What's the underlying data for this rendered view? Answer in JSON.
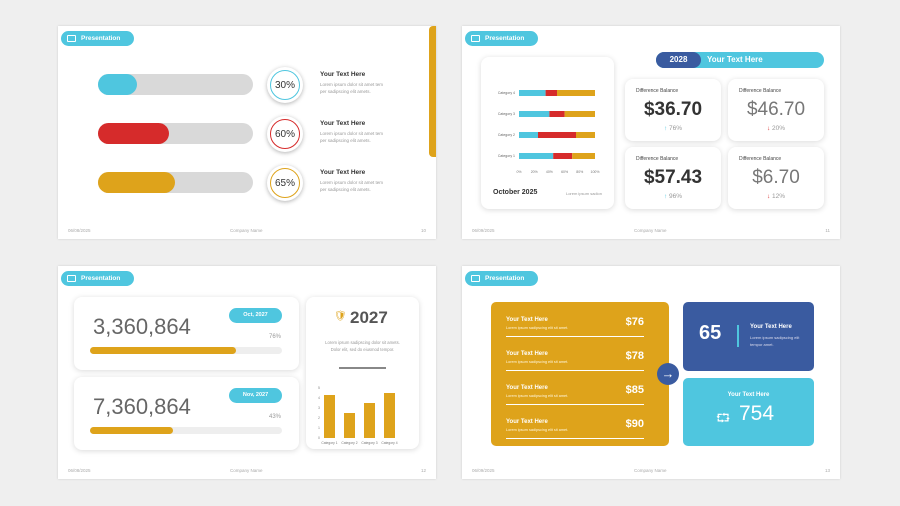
{
  "pill_label": "Presentation",
  "company": "Company Name",
  "colors": {
    "cyan": "#4fc6df",
    "red": "#d62b2b",
    "gold": "#dea31b",
    "navy": "#3a5ba0"
  },
  "slide1": {
    "date": "06/08/2025",
    "page": "10",
    "rows": [
      {
        "percent": "30%",
        "value": 30,
        "color": "#4fc6df",
        "title": "Your Text Here",
        "body": "Lorem ipsum dolor sit amet tem per sadipscing elit amets."
      },
      {
        "percent": "60%",
        "value": 60,
        "color": "#d62b2b",
        "title": "Your Text Here",
        "body": "Lorem ipsum dolor sit amet tem per sadipscing elit amets."
      },
      {
        "percent": "65%",
        "value": 65,
        "color": "#dea31b",
        "title": "Your Text Here",
        "body": "Lorem ipsum dolor sit amet tem per sadipscing elit amets."
      }
    ]
  },
  "slide2": {
    "date": "06/09/2025",
    "page": "11",
    "year": "2028",
    "banner": "Your Text Here",
    "chart_title": "October 2025",
    "chart_note": "Lorem ipsum sadion",
    "chart_data": {
      "type": "bar",
      "orientation": "horizontal",
      "stacked": "percent",
      "categories": [
        "Category 1",
        "Category 2",
        "Category 3",
        "Category 4"
      ],
      "series": [
        {
          "color": "#4fc6df",
          "values": [
            45,
            25,
            40,
            35
          ]
        },
        {
          "color": "#d62b2b",
          "values": [
            25,
            50,
            20,
            15
          ]
        },
        {
          "color": "#dea31b",
          "values": [
            30,
            25,
            40,
            50
          ]
        }
      ],
      "x_ticks": [
        "0%",
        "20%",
        "40%",
        "60%",
        "80%",
        "100%"
      ],
      "xlim": [
        0,
        100
      ]
    },
    "cards": [
      {
        "label": "Difference Balance",
        "value": "$36.70",
        "change": "76%",
        "dir": "up"
      },
      {
        "label": "Difference Balance",
        "value": "$46.70",
        "change": "20%",
        "dir": "down"
      },
      {
        "label": "Difference Balance",
        "value": "$57.43",
        "change": "96%",
        "dir": "up"
      },
      {
        "label": "Difference Balance",
        "value": "$6.70",
        "change": "12%",
        "dir": "down"
      }
    ]
  },
  "slide3": {
    "date": "06/08/2025",
    "page": "12",
    "stats": [
      {
        "value": "3,360,864",
        "badge": "Oct, 2027",
        "percent": "76%",
        "progress": 76
      },
      {
        "value": "7,360,864",
        "badge": "Nov, 2027",
        "percent": "43%",
        "progress": 43
      }
    ],
    "year": "2027",
    "body": "Lorem ipsum sadipscing dolor sit amets. Dolor elit, sed do eiusmod tempor.",
    "chart_data": {
      "type": "bar",
      "categories": [
        "Category 1",
        "Category 2",
        "Category 3",
        "Category 4"
      ],
      "values": [
        4.3,
        2.5,
        3.5,
        4.5
      ],
      "ylim": [
        0,
        5
      ],
      "y_ticks": [
        "0",
        "1",
        "2",
        "3",
        "4",
        "5"
      ],
      "color": "#dea31b"
    }
  },
  "slide4": {
    "date": "06/09/2025",
    "page": "13",
    "items": [
      {
        "title": "Your Text Here",
        "body": "Lorem ipsum sadipscing elit sit amet.",
        "price": "$76"
      },
      {
        "title": "Your Text Here",
        "body": "Lorem ipsum sadipscing elit sit amet.",
        "price": "$78"
      },
      {
        "title": "Your Text Here",
        "body": "Lorem ipsum sadipscing elit sit amet.",
        "price": "$85"
      },
      {
        "title": "Your Text Here",
        "body": "Lorem ipsum sadipscing elit sit amet.",
        "price": "$90"
      }
    ],
    "blue_number": "65",
    "blue_title": "Your Text Here",
    "blue_body": "Lorem ipsum sadipscing elit tempor amet.",
    "cyan_title": "Your Text Here",
    "cyan_number": "754"
  }
}
